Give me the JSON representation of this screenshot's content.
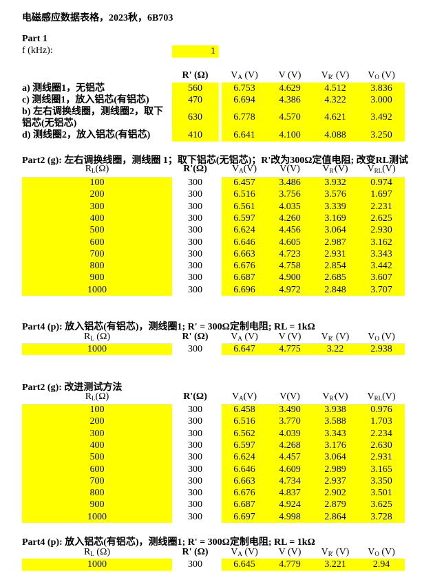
{
  "page_title": "电磁感应数据表格，2023秋，6B703",
  "colors": {
    "highlight": "#ffff00"
  },
  "part1": {
    "heading": "Part 1",
    "freq_label": "f (kHz):",
    "freq_value": "1",
    "headers": {
      "r": "R' (Ω)",
      "va_main": "V",
      "va_sub": "A",
      "va_unit": " (V)",
      "v": "V (V)",
      "vr_main": "V",
      "vr_sub": "R'",
      "vr_unit": " (V)",
      "vo_main": "V",
      "vo_sub": "O",
      "vo_unit": " (V)"
    },
    "rows": [
      {
        "label": "a) 测线圈1，无铝芯",
        "r": "560",
        "va": "6.753",
        "v": "4.629",
        "vr": "4.512",
        "vo": "3.836"
      },
      {
        "label": "c) 测线圈1，放入铝芯(有铝芯)",
        "r": "470",
        "va": "6.694",
        "v": "4.386",
        "vr": "4.322",
        "vo": "3.000"
      },
      {
        "label": "b) 左右调换线圈，测线圈2，取下",
        "label2": "铝芯(无铝芯)",
        "r": "630",
        "va": "6.778",
        "v": "4.570",
        "vr": "4.621",
        "vo": "3.492"
      },
      {
        "label": "d) 测线圈2，放入铝芯(有铝芯)",
        "r": "410",
        "va": "6.641",
        "v": "4.100",
        "vr": "4.088",
        "vo": "3.250"
      }
    ]
  },
  "part2a": {
    "heading": "Part2 (g): 左右调换线圈，测线圈 1；取下铝芯(无铝芯)；R'改为300Ω定值电阻; 改变RL测试",
    "headers": {
      "rl_main": "R",
      "rl_sub": "L",
      "rl_unit": "(Ω)",
      "r": "R'(Ω)",
      "va_main": "V",
      "va_sub": "A",
      "va_unit": "(V)",
      "v": "V(V)",
      "vr_main": "V",
      "vr_sub": "R'",
      "vr_unit": "(V)",
      "vrl_main": "V",
      "vrl_sub": "RL",
      "vrl_unit": "(V)"
    },
    "rows": [
      {
        "rl": "100",
        "r": "300",
        "va": "6.457",
        "v": "3.486",
        "vr": "3.932",
        "vrl": "0.974"
      },
      {
        "rl": "200",
        "r": "300",
        "va": "6.516",
        "v": "3.756",
        "vr": "3.576",
        "vrl": "1.697"
      },
      {
        "rl": "300",
        "r": "300",
        "va": "6.561",
        "v": "4.035",
        "vr": "3.339",
        "vrl": "2.231"
      },
      {
        "rl": "400",
        "r": "300",
        "va": "6.597",
        "v": "4.260",
        "vr": "3.169",
        "vrl": "2.625"
      },
      {
        "rl": "500",
        "r": "300",
        "va": "6.624",
        "v": "4.456",
        "vr": "3.064",
        "vrl": "2.930"
      },
      {
        "rl": "600",
        "r": "300",
        "va": "6.646",
        "v": "4.605",
        "vr": "2.987",
        "vrl": "3.162"
      },
      {
        "rl": "700",
        "r": "300",
        "va": "6.663",
        "v": "4.723",
        "vr": "2.931",
        "vrl": "3.343"
      },
      {
        "rl": "800",
        "r": "300",
        "va": "6.676",
        "v": "4.758",
        "vr": "2.854",
        "vrl": "3.442"
      },
      {
        "rl": "900",
        "r": "300",
        "va": "6.687",
        "v": "4.900",
        "vr": "2.685",
        "vrl": "3.607"
      },
      {
        "rl": "1000",
        "r": "300",
        "va": "6.696",
        "v": "4.972",
        "vr": "2.848",
        "vrl": "3.707"
      }
    ]
  },
  "part4a": {
    "heading": "Part4 (p): 放入铝芯(有铝芯)，测线圈1; R' = 300Ω定制电阻;    RL = 1kΩ",
    "headers": {
      "rl_main": "R",
      "rl_sub": "L",
      "rl_unit": " (Ω)",
      "r": "R' (Ω)",
      "va_main": "V",
      "va_sub": "A",
      "va_unit": " (V)",
      "v": "V (V)",
      "vr_main": "V",
      "vr_sub": "R'",
      "vr_unit": " (V)",
      "vo_main": "V",
      "vo_sub": "O",
      "vo_unit": " (V)"
    },
    "row": {
      "rl": "1000",
      "r": "300",
      "va": "6.647",
      "v": "4.775",
      "vr": "3.22",
      "vo": "2.938"
    }
  },
  "part2b": {
    "heading": "Part2 (g):  改进测试方法",
    "headers": {
      "rl_main": "R",
      "rl_sub": "L",
      "rl_unit": "(Ω)",
      "r": "R'(Ω)",
      "va_main": "V",
      "va_sub": "A",
      "va_unit": "(V)",
      "v": "V(V)",
      "vr_main": "V",
      "vr_sub": "R'",
      "vr_unit": "(V)",
      "vrl_main": "V",
      "vrl_sub": "RL",
      "vrl_unit": "(V)"
    },
    "rows": [
      {
        "rl": "100",
        "r": "300",
        "va": "6.458",
        "v": "3.490",
        "vr": "3.938",
        "vrl": "0.976"
      },
      {
        "rl": "200",
        "r": "300",
        "va": "6.516",
        "v": "3.770",
        "vr": "3.588",
        "vrl": "1.703"
      },
      {
        "rl": "300",
        "r": "300",
        "va": "6.562",
        "v": "4.039",
        "vr": "3.343",
        "vrl": "2.234"
      },
      {
        "rl": "400",
        "r": "300",
        "va": "6.597",
        "v": "4.268",
        "vr": "3.176",
        "vrl": "2.630"
      },
      {
        "rl": "500",
        "r": "300",
        "va": "6.624",
        "v": "4.457",
        "vr": "3.064",
        "vrl": "2.931"
      },
      {
        "rl": "600",
        "r": "300",
        "va": "6.646",
        "v": "4.609",
        "vr": "2.989",
        "vrl": "3.165"
      },
      {
        "rl": "700",
        "r": "300",
        "va": "6.663",
        "v": "4.734",
        "vr": "2.937",
        "vrl": "3.350"
      },
      {
        "rl": "800",
        "r": "300",
        "va": "6.676",
        "v": "4.837",
        "vr": "2.902",
        "vrl": "3.501"
      },
      {
        "rl": "900",
        "r": "300",
        "va": "6.687",
        "v": "4.924",
        "vr": "2.879",
        "vrl": "3.625"
      },
      {
        "rl": "1000",
        "r": "300",
        "va": "6.697",
        "v": "4.998",
        "vr": "2.864",
        "vrl": "3.728"
      }
    ]
  },
  "part4b": {
    "heading": "Part4 (p): 放入铝芯(有铝芯)，测线圈1; R' = 300Ω定制电阻;    RL = 1kΩ",
    "headers": {
      "rl_main": "R",
      "rl_sub": "L",
      "rl_unit": " (Ω)",
      "r": "R' (Ω)",
      "va_main": "V",
      "va_sub": "A",
      "va_unit": " (V)",
      "v": "V (V)",
      "vr_main": "V",
      "vr_sub": "R'",
      "vr_unit": " (V)",
      "vo_main": "V",
      "vo_sub": "O",
      "vo_unit": " (V)"
    },
    "row": {
      "rl": "1000",
      "r": "300",
      "va": "6.645",
      "v": "4.779",
      "vr": "3.221",
      "vo": "2.94"
    }
  }
}
